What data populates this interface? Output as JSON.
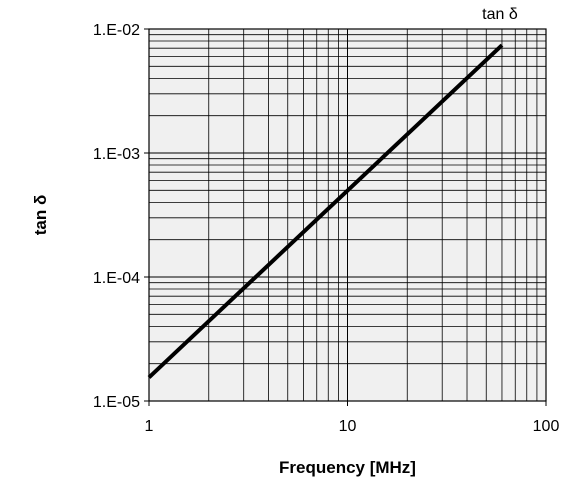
{
  "chart_data": {
    "type": "line",
    "xlabel": "Frequency [MHz]",
    "ylabel": "tan δ",
    "x_scale": "log",
    "y_scale": "log",
    "xlim": [
      1,
      100
    ],
    "ylim": [
      1e-05,
      0.01
    ],
    "x_ticks": [
      1,
      10,
      100
    ],
    "x_tick_labels": [
      "1",
      "10",
      "100"
    ],
    "y_ticks": [
      1e-05,
      0.0001,
      0.001,
      0.01
    ],
    "y_tick_labels": [
      "1.E-05",
      "1.E-04",
      "1.E-03",
      "1.E-02"
    ],
    "grid": true,
    "plot_background": "#f0f0f0",
    "series": [
      {
        "name": "tan δ",
        "color": "#000000",
        "x": [
          1,
          60
        ],
        "y": [
          1.55e-05,
          0.0074
        ]
      }
    ]
  }
}
